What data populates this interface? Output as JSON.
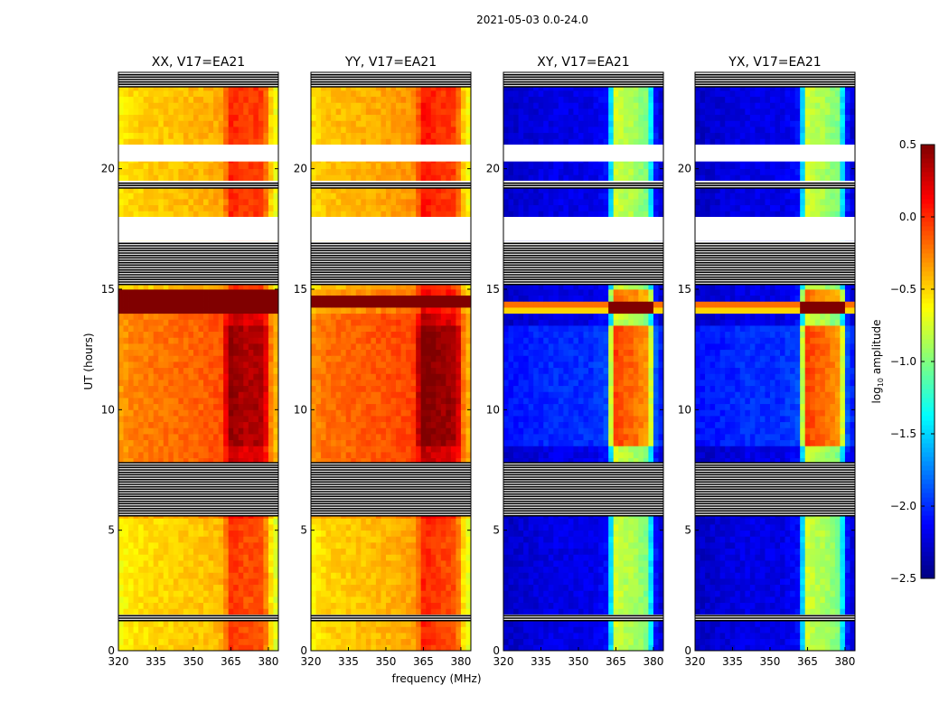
{
  "chart_data": {
    "type": "heatmap",
    "title": "2021-05-03 0.0-24.0",
    "xlabel": "frequency (MHz)",
    "ylabel": "UT (hours)",
    "xlim": [
      320,
      384
    ],
    "ylim": [
      0,
      24
    ],
    "xticks": [
      320,
      335,
      350,
      365,
      380
    ],
    "yticks": [
      0,
      5,
      10,
      15,
      20
    ],
    "freq_step": 2,
    "time_step": 0.25,
    "colorbar": {
      "label": "log10 amplitude",
      "label_main": "log",
      "label_sub": "10",
      "label_rest": " amplitude",
      "colormap": "jet",
      "range": [
        -2.5,
        0.5
      ],
      "ticks": [
        "0.5",
        "0.0",
        "−0.5",
        "−1.0",
        "−1.5",
        "−2.0",
        "−2.5"
      ],
      "tick_values": [
        0.5,
        0.0,
        -0.5,
        -1.0,
        -1.5,
        -2.0,
        -2.5
      ]
    },
    "flags": [
      [
        1.25,
        1.5,
        "striped"
      ],
      [
        5.6,
        7.8,
        "striped"
      ],
      [
        15.2,
        17.0,
        "striped"
      ],
      [
        17.0,
        18.0,
        "white"
      ],
      [
        19.2,
        19.5,
        "striped"
      ],
      [
        20.3,
        21.0,
        "white"
      ],
      [
        23.4,
        24.0,
        "striped"
      ]
    ],
    "panels": [
      {
        "title": "XX, V17=EA21",
        "freq_profile": [
          [
            320,
            -0.5
          ],
          [
            326,
            -0.4
          ],
          [
            340,
            -0.35
          ],
          [
            355,
            -0.3
          ],
          [
            362,
            -0.25
          ],
          [
            364,
            0.05
          ],
          [
            366,
            0.2
          ],
          [
            368,
            0.0
          ],
          [
            370,
            0.15
          ],
          [
            372,
            -0.05
          ],
          [
            374,
            0.15
          ],
          [
            376,
            0.0
          ],
          [
            378,
            0.1
          ],
          [
            380,
            -0.3
          ],
          [
            384,
            -0.65
          ]
        ],
        "time_offsets": [
          [
            0,
            5.6,
            -0.15
          ],
          [
            7.8,
            14.0,
            0.15
          ],
          [
            15.0,
            24.0,
            -0.1
          ]
        ],
        "saturated": [
          [
            14.1,
            14.95,
            0.5
          ]
        ],
        "band": [
          363,
          380
        ],
        "band_boost": [
          [
            8.5,
            13.5,
            0.15
          ]
        ]
      },
      {
        "title": "YY, V17=EA21",
        "freq_profile": [
          [
            320,
            -0.45
          ],
          [
            326,
            -0.35
          ],
          [
            340,
            -0.3
          ],
          [
            352,
            -0.25
          ],
          [
            362,
            -0.2
          ],
          [
            364,
            0.1
          ],
          [
            366,
            0.25
          ],
          [
            368,
            0.05
          ],
          [
            370,
            0.2
          ],
          [
            372,
            0.0
          ],
          [
            374,
            0.15
          ],
          [
            376,
            0.0
          ],
          [
            378,
            0.1
          ],
          [
            380,
            -0.3
          ],
          [
            384,
            -0.6
          ]
        ],
        "time_offsets": [
          [
            0,
            5.6,
            -0.15
          ],
          [
            7.8,
            14.0,
            0.15
          ],
          [
            15.0,
            24.0,
            -0.1
          ]
        ],
        "saturated": [
          [
            14.2,
            14.8,
            0.5
          ]
        ],
        "band": [
          363,
          380
        ],
        "band_boost": [
          [
            8.5,
            13.5,
            0.2
          ]
        ]
      },
      {
        "title": "XY, V17=EA21",
        "freq_profile": [
          [
            320,
            -2.3
          ],
          [
            340,
            -2.2
          ],
          [
            355,
            -2.2
          ],
          [
            362,
            -2.1
          ],
          [
            364,
            -0.9
          ],
          [
            366,
            -0.6
          ],
          [
            368,
            -1.0
          ],
          [
            370,
            -0.7
          ],
          [
            372,
            -1.0
          ],
          [
            374,
            -0.8
          ],
          [
            376,
            -1.1
          ],
          [
            378,
            -0.9
          ],
          [
            380,
            -2.0
          ],
          [
            384,
            -2.3
          ]
        ],
        "time_offsets": [
          [
            8.5,
            13.5,
            0.2
          ]
        ],
        "saturated": [
          [
            14.0,
            14.2,
            -0.5
          ],
          [
            14.2,
            14.6,
            -0.2
          ]
        ],
        "band": [
          363,
          380
        ],
        "band_boost": [
          [
            8.5,
            13.5,
            0.5
          ],
          [
            14.6,
            15.0,
            0.6
          ]
        ]
      },
      {
        "title": "YX, V17=EA21",
        "freq_profile": [
          [
            320,
            -2.3
          ],
          [
            340,
            -2.2
          ],
          [
            355,
            -2.2
          ],
          [
            362,
            -2.1
          ],
          [
            364,
            -0.9
          ],
          [
            366,
            -0.6
          ],
          [
            368,
            -1.0
          ],
          [
            370,
            -0.7
          ],
          [
            372,
            -1.0
          ],
          [
            374,
            -0.8
          ],
          [
            376,
            -1.1
          ],
          [
            378,
            -0.9
          ],
          [
            380,
            -2.0
          ],
          [
            384,
            -2.3
          ]
        ],
        "time_offsets": [
          [
            8.5,
            13.5,
            0.2
          ]
        ],
        "saturated": [
          [
            14.0,
            14.2,
            -0.5
          ],
          [
            14.2,
            14.6,
            -0.2
          ]
        ],
        "band": [
          363,
          380
        ],
        "band_boost": [
          [
            8.5,
            13.5,
            0.5
          ],
          [
            14.6,
            15.0,
            0.6
          ]
        ]
      }
    ]
  }
}
